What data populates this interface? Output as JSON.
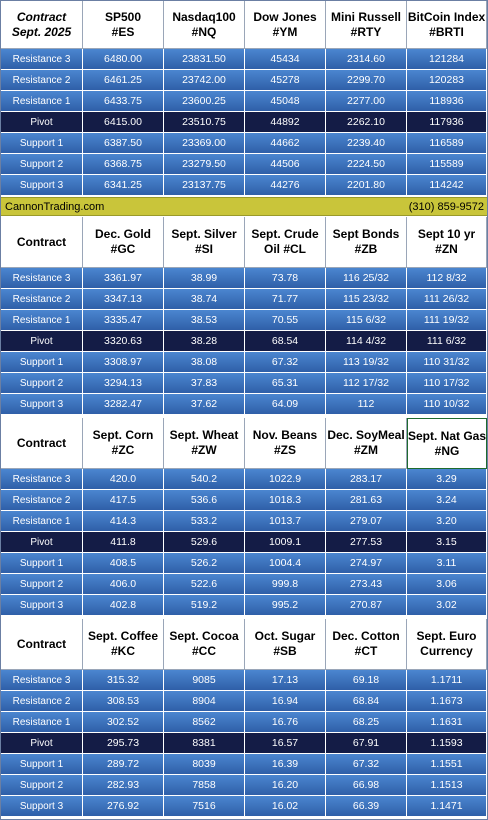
{
  "row_labels": [
    "Resistance 3",
    "Resistance 2",
    "Resistance 1",
    "Pivot",
    "Support 1",
    "Support 2",
    "Support 3"
  ],
  "colors": {
    "header_bg": "#ffffff",
    "row_blue": "#3f74c0",
    "pivot_row": "#141c46",
    "banner_bg": "#c9c53a",
    "cell_text": "#ffffff"
  },
  "banner": {
    "left": "CannonTrading.com",
    "right": "(310) 859-9572"
  },
  "tables": [
    {
      "header": [
        {
          "line1": "Contract",
          "line2": "Sept. 2025"
        },
        {
          "line1": "SP500",
          "line2": "#ES"
        },
        {
          "line1": "Nasdaq100",
          "line2": "#NQ"
        },
        {
          "line1": "Dow Jones",
          "line2": "#YM"
        },
        {
          "line1": "Mini Russell",
          "line2": "#RTY"
        },
        {
          "line1": "BitCoin Index",
          "line2": "#BRTI"
        }
      ],
      "rows": [
        [
          "6480.00",
          "23831.50",
          "45434",
          "2314.60",
          "121284"
        ],
        [
          "6461.25",
          "23742.00",
          "45278",
          "2299.70",
          "120283"
        ],
        [
          "6433.75",
          "23600.25",
          "45048",
          "2277.00",
          "118936"
        ],
        [
          "6415.00",
          "23510.75",
          "44892",
          "2262.10",
          "117936"
        ],
        [
          "6387.50",
          "23369.00",
          "44662",
          "2239.40",
          "116589"
        ],
        [
          "6368.75",
          "23279.50",
          "44506",
          "2224.50",
          "115589"
        ],
        [
          "6341.25",
          "23137.75",
          "44276",
          "2201.80",
          "114242"
        ]
      ]
    },
    {
      "header": [
        {
          "line1": "Contract",
          "line2": ""
        },
        {
          "line1": "Dec. Gold",
          "line2": "#GC"
        },
        {
          "line1": "Sept. Silver",
          "line2": "#SI"
        },
        {
          "line1": "Sept. Crude",
          "line2": "Oil #CL"
        },
        {
          "line1": "Sept Bonds",
          "line2": "#ZB"
        },
        {
          "line1": "Sept 10 yr",
          "line2": "#ZN"
        }
      ],
      "rows": [
        [
          "3361.97",
          "38.99",
          "73.78",
          "116 25/32",
          "112  8/32"
        ],
        [
          "3347.13",
          "38.74",
          "71.77",
          "115 23/32",
          "111 26/32"
        ],
        [
          "3335.47",
          "38.53",
          "70.55",
          "115  6/32",
          "111 19/32"
        ],
        [
          "3320.63",
          "38.28",
          "68.54",
          "114  4/32",
          "111  6/32"
        ],
        [
          "3308.97",
          "38.08",
          "67.32",
          "113 19/32",
          "110 31/32"
        ],
        [
          "3294.13",
          "37.83",
          "65.31",
          "112 17/32",
          "110 17/32"
        ],
        [
          "3282.47",
          "37.62",
          "64.09",
          "112",
          "110 10/32"
        ]
      ]
    },
    {
      "header": [
        {
          "line1": "Contract",
          "line2": ""
        },
        {
          "line1": "Sept. Corn",
          "line2": "#ZC"
        },
        {
          "line1": "Sept.  Wheat",
          "line2": "#ZW"
        },
        {
          "line1": "Nov. Beans",
          "line2": "#ZS"
        },
        {
          "line1": "Dec. SoyMeal",
          "line2": "#ZM"
        },
        {
          "line1": "Sept. Nat Gas",
          "line2": "#NG"
        }
      ],
      "rows": [
        [
          "420.0",
          "540.2",
          "1022.9",
          "283.17",
          "3.29"
        ],
        [
          "417.5",
          "536.6",
          "1018.3",
          "281.63",
          "3.24"
        ],
        [
          "414.3",
          "533.2",
          "1013.7",
          "279.07",
          "3.20"
        ],
        [
          "411.8",
          "529.6",
          "1009.1",
          "277.53",
          "3.15"
        ],
        [
          "408.5",
          "526.2",
          "1004.4",
          "274.97",
          "3.11"
        ],
        [
          "406.0",
          "522.6",
          "999.8",
          "273.43",
          "3.06"
        ],
        [
          "402.8",
          "519.2",
          "995.2",
          "270.87",
          "3.02"
        ]
      ]
    },
    {
      "header": [
        {
          "line1": "Contract",
          "line2": ""
        },
        {
          "line1": "Sept. Coffee",
          "line2": "#KC"
        },
        {
          "line1": "Sept. Cocoa",
          "line2": "#CC"
        },
        {
          "line1": "Oct. Sugar",
          "line2": "#SB"
        },
        {
          "line1": "Dec. Cotton",
          "line2": "#CT"
        },
        {
          "line1": "Sept. Euro",
          "line2": "Currency"
        }
      ],
      "rows": [
        [
          "315.32",
          "9085",
          "17.13",
          "69.18",
          "1.1711"
        ],
        [
          "308.53",
          "8904",
          "16.94",
          "68.84",
          "1.1673"
        ],
        [
          "302.52",
          "8562",
          "16.76",
          "68.25",
          "1.1631"
        ],
        [
          "295.73",
          "8381",
          "16.57",
          "67.91",
          "1.1593"
        ],
        [
          "289.72",
          "8039",
          "16.39",
          "67.32",
          "1.1551"
        ],
        [
          "282.93",
          "7858",
          "16.20",
          "66.98",
          "1.1513"
        ],
        [
          "276.92",
          "7516",
          "16.02",
          "66.39",
          "1.1471"
        ]
      ]
    }
  ]
}
